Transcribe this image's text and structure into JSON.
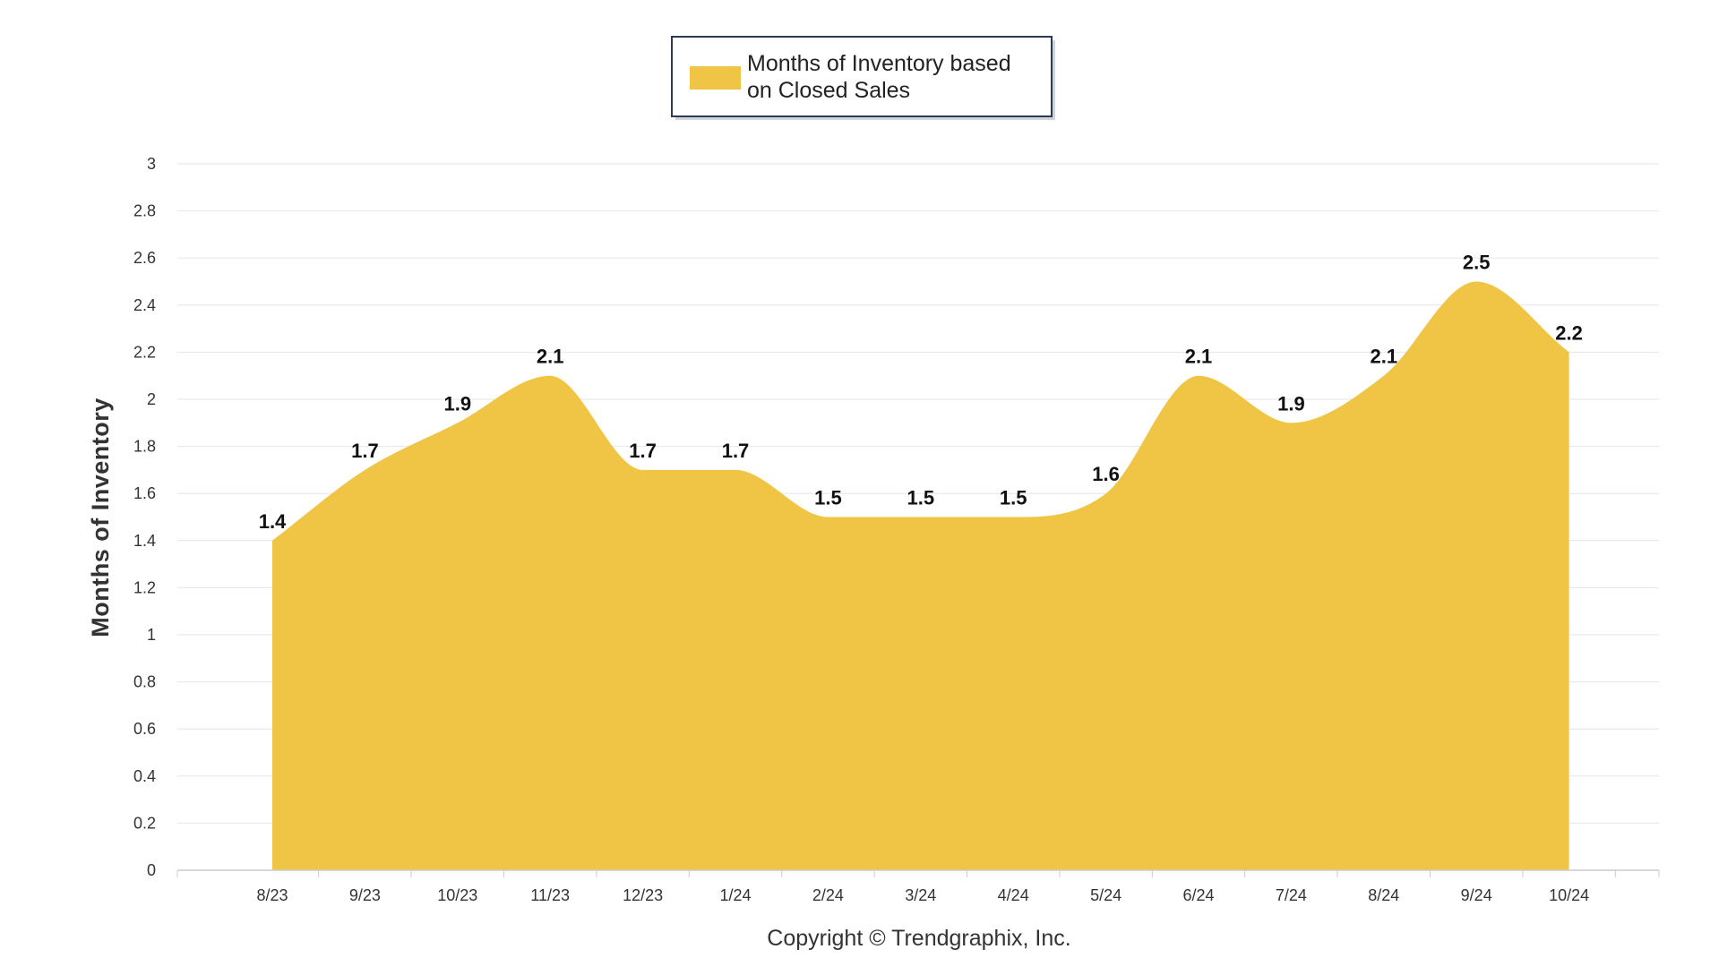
{
  "chart_data": {
    "type": "area",
    "categories": [
      "8/23",
      "9/23",
      "10/23",
      "11/23",
      "12/23",
      "1/24",
      "2/24",
      "3/24",
      "4/24",
      "5/24",
      "6/24",
      "7/24",
      "8/24",
      "9/24",
      "10/24"
    ],
    "series": [
      {
        "name": "Months of Inventory based on Closed Sales",
        "values": [
          1.4,
          1.7,
          1.9,
          2.1,
          1.7,
          1.7,
          1.5,
          1.5,
          1.5,
          1.6,
          2.1,
          1.9,
          2.1,
          2.5,
          2.2
        ],
        "color": "#F0C545"
      }
    ],
    "data_labels": [
      "1.4",
      "1.7",
      "1.9",
      "2.1",
      "1.7",
      "1.7",
      "1.5",
      "1.5",
      "1.5",
      "1.6",
      "2.1",
      "1.9",
      "2.1",
      "2.5",
      "2.2"
    ],
    "ylabel": "Months of Inventory",
    "xlabel": "",
    "title": "",
    "ylim": [
      0,
      3
    ],
    "yticks": [
      "0",
      "0.2",
      "0.4",
      "0.6",
      "0.8",
      "1",
      "1.2",
      "1.4",
      "1.6",
      "1.8",
      "2",
      "2.2",
      "2.4",
      "2.6",
      "2.8",
      "3"
    ],
    "grid": true,
    "legend_position": "top-center",
    "legend_lines": [
      "Months of Inventory based",
      "on Closed Sales"
    ]
  },
  "footer": {
    "copyright": "Copyright © Trendgraphix, Inc."
  },
  "colors": {
    "area_fill": "#F0C545",
    "gridline": "#E6E6E6",
    "legend_border": "#2B3A55"
  }
}
